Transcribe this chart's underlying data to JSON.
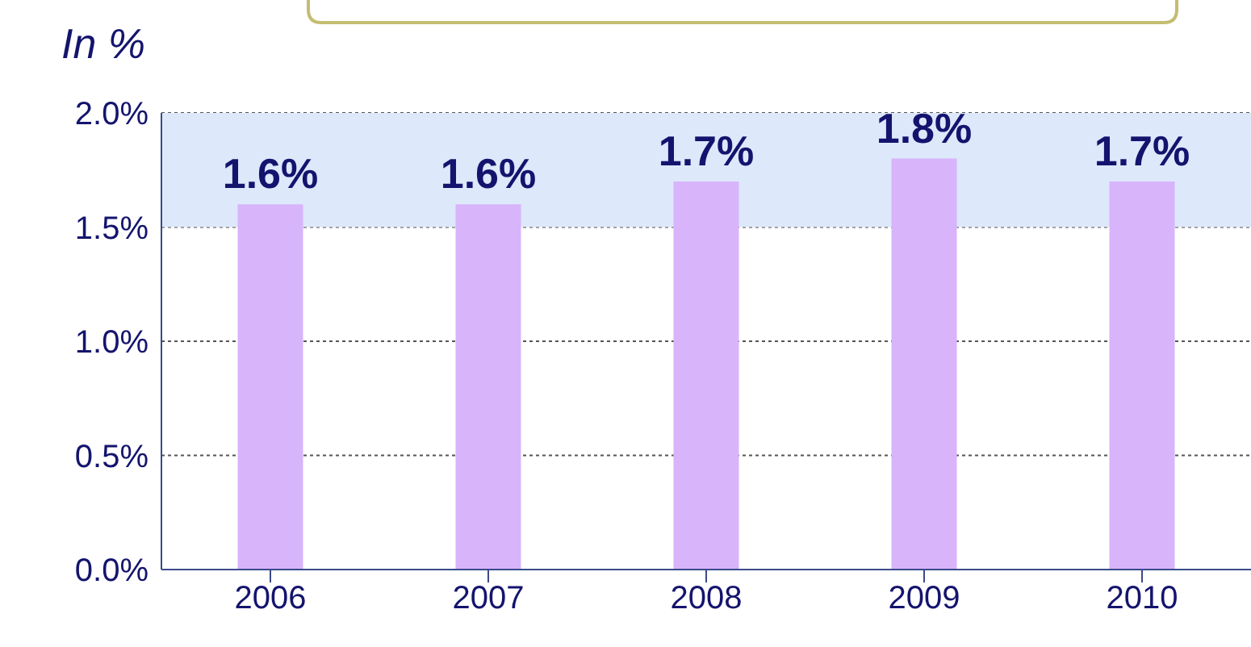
{
  "chart_data": {
    "type": "bar",
    "ylabel": "In %",
    "categories": [
      "2006",
      "2007",
      "2008",
      "2009",
      "2010"
    ],
    "values": [
      1.6,
      1.6,
      1.7,
      1.8,
      1.7
    ],
    "color": "#d8b4fb",
    "ylim": [
      0,
      2.0
    ],
    "yticks": [
      {
        "value": 0,
        "label": "0.0%"
      },
      {
        "value": 0.5,
        "label": "0.5%"
      },
      {
        "value": 1.0,
        "label": "1.0%"
      },
      {
        "value": 1.5,
        "label": "1.5%"
      },
      {
        "value": 2.0,
        "label": "2.0%"
      }
    ],
    "grid": "y",
    "value_labels": [
      "1.6%",
      "1.6%",
      "1.7%",
      "1.8%",
      "1.7%"
    ],
    "bands": [
      {
        "axis": "y",
        "from": 1.5,
        "to": 2.0,
        "color": "#dde8fb"
      }
    ]
  }
}
